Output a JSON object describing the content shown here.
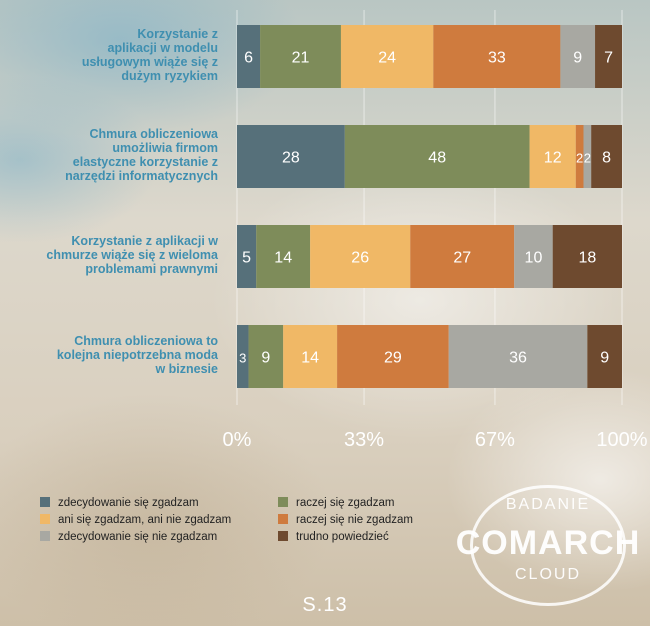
{
  "chart_data": {
    "type": "bar",
    "orientation": "horizontal",
    "stacked": true,
    "normalized_percent": true,
    "categories": [
      "Korzystanie z aplikacji w modelu usługowym wiąże się z dużym ryzykiem",
      "Chmura obliczeniowa umożliwia firmom elastyczne korzystanie z narzędzi informatycznych",
      "Korzystanie z aplikacji w chmurze wiąże się z wieloma problemami prawnymi",
      "Chmura obliczeniowa to kolejna niepotrzebna moda w biznesie"
    ],
    "category_lines": [
      [
        "Korzystanie z",
        "aplikacji w modelu",
        "usługowym wiąże się z",
        "dużym ryzykiem"
      ],
      [
        "Chmura obliczeniowa",
        "umożliwia firmom",
        "elastyczne korzystanie z",
        "narzędzi informatycznych"
      ],
      [
        "Korzystanie z aplikacji w",
        "chmurze wiąże się z wieloma",
        "problemami prawnymi"
      ],
      [
        "Chmura obliczeniowa to",
        "kolejna niepotrzebna moda",
        "w biznesie"
      ]
    ],
    "series": [
      {
        "name": "zdecydowanie się zgadzam",
        "color": "#56707a",
        "values": [
          6,
          28,
          5,
          3
        ]
      },
      {
        "name": "raczej się zgadzam",
        "color": "#7e8c5a",
        "values": [
          21,
          48,
          14,
          9
        ]
      },
      {
        "name": "ani się zgadzam, ani nie zgadzam",
        "color": "#f0b866",
        "values": [
          24,
          12,
          26,
          14
        ]
      },
      {
        "name": "raczej się nie zgadzam",
        "color": "#cf7b3e",
        "values": [
          33,
          2,
          27,
          29
        ]
      },
      {
        "name": "zdecydowanie się nie zgadzam",
        "color": "#a8a8a2",
        "values": [
          9,
          2,
          10,
          36
        ]
      },
      {
        "name": "trudno powiedzieć",
        "color": "#6e4a2f",
        "values": [
          7,
          8,
          18,
          9
        ]
      }
    ],
    "x_ticks": [
      "0%",
      "33%",
      "67%",
      "100%"
    ],
    "x_tick_values": [
      0,
      33,
      67,
      100
    ],
    "xlim": [
      0,
      100
    ],
    "grid": true,
    "legend_position": "bottom-left"
  },
  "logo": {
    "line1": "BADANIE",
    "line2": "COMARCH",
    "line3": "CLOUD"
  },
  "page_number": "S.13"
}
